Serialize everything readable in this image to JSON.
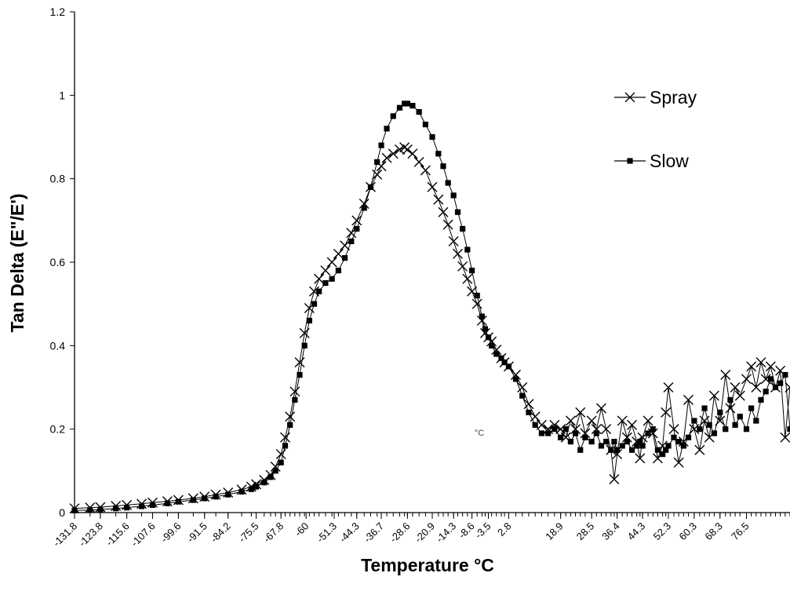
{
  "chart_data": {
    "type": "line",
    "title": "",
    "xlabel": "Temperature °C",
    "ylabel": "Tan Delta (E\"/E')",
    "unit_mark": "°C",
    "ylim": [
      0,
      1.2
    ],
    "xlim": [
      -131.8,
      90
    ],
    "y_ticks": [
      "0",
      "0.2",
      "0.4",
      "0.6",
      "0.8",
      "1",
      "1.2"
    ],
    "x_tick_labels": [
      "-131.8",
      "-123.8",
      "-115.6",
      "-107.6",
      "-99.6",
      "-91.5",
      "-84.2",
      "-75.5",
      "-67.8",
      "-60",
      "-51.3",
      "-44.3",
      "-36.7",
      "-28.6",
      "-20.9",
      "-14.3",
      "-8.6",
      "-3.5",
      "2.8",
      "18.9",
      "28.5",
      "36.4",
      "44.3",
      "52.3",
      "60.3",
      "68.3",
      "76.5"
    ],
    "legend_position": "top-right",
    "grid": false,
    "colors": {
      "line": "#000000",
      "axis": "#000000",
      "background": "#ffffff"
    },
    "series": [
      {
        "name": "Spray",
        "marker": "x",
        "points": [
          [
            -131.8,
            0.01
          ],
          [
            -127,
            0.012
          ],
          [
            -123.8,
            0.013
          ],
          [
            -119,
            0.016
          ],
          [
            -115.6,
            0.018
          ],
          [
            -111,
            0.021
          ],
          [
            -107.6,
            0.024
          ],
          [
            -103,
            0.027
          ],
          [
            -99.6,
            0.03
          ],
          [
            -95,
            0.034
          ],
          [
            -91.5,
            0.038
          ],
          [
            -88,
            0.043
          ],
          [
            -84.2,
            0.048
          ],
          [
            -80,
            0.055
          ],
          [
            -77,
            0.062
          ],
          [
            -75.5,
            0.068
          ],
          [
            -73,
            0.078
          ],
          [
            -71,
            0.09
          ],
          [
            -69.5,
            0.11
          ],
          [
            -67.8,
            0.14
          ],
          [
            -66.5,
            0.18
          ],
          [
            -65,
            0.23
          ],
          [
            -63.5,
            0.29
          ],
          [
            -62,
            0.36
          ],
          [
            -60.5,
            0.43
          ],
          [
            -59,
            0.49
          ],
          [
            -57.5,
            0.53
          ],
          [
            -56,
            0.56
          ],
          [
            -54,
            0.58
          ],
          [
            -52,
            0.6
          ],
          [
            -50,
            0.62
          ],
          [
            -48,
            0.64
          ],
          [
            -46,
            0.67
          ],
          [
            -44.3,
            0.7
          ],
          [
            -42,
            0.74
          ],
          [
            -40,
            0.78
          ],
          [
            -38,
            0.81
          ],
          [
            -36.7,
            0.83
          ],
          [
            -35,
            0.85
          ],
          [
            -33,
            0.86
          ],
          [
            -31,
            0.87
          ],
          [
            -29.5,
            0.875
          ],
          [
            -28.6,
            0.87
          ],
          [
            -27,
            0.86
          ],
          [
            -25,
            0.84
          ],
          [
            -23,
            0.82
          ],
          [
            -20.9,
            0.78
          ],
          [
            -19,
            0.75
          ],
          [
            -17.5,
            0.72
          ],
          [
            -16,
            0.69
          ],
          [
            -14.3,
            0.65
          ],
          [
            -13,
            0.62
          ],
          [
            -11.5,
            0.59
          ],
          [
            -10,
            0.56
          ],
          [
            -8.6,
            0.53
          ],
          [
            -7,
            0.5
          ],
          [
            -5.5,
            0.46
          ],
          [
            -4.5,
            0.43
          ],
          [
            -3.5,
            0.42
          ],
          [
            -2.5,
            0.41
          ],
          [
            -1,
            0.39
          ],
          [
            0.5,
            0.37
          ],
          [
            1.5,
            0.36
          ],
          [
            2.8,
            0.35
          ],
          [
            5,
            0.33
          ],
          [
            7,
            0.3
          ],
          [
            9,
            0.26
          ],
          [
            11,
            0.23
          ],
          [
            13,
            0.21
          ],
          [
            15,
            0.2
          ],
          [
            17,
            0.21
          ],
          [
            18.9,
            0.2
          ],
          [
            20.5,
            0.18
          ],
          [
            22,
            0.22
          ],
          [
            23.5,
            0.2
          ],
          [
            25,
            0.24
          ],
          [
            26.5,
            0.19
          ],
          [
            28.5,
            0.22
          ],
          [
            30,
            0.2
          ],
          [
            31.5,
            0.25
          ],
          [
            33,
            0.2
          ],
          [
            34.5,
            0.15
          ],
          [
            35.5,
            0.08
          ],
          [
            36.4,
            0.14
          ],
          [
            38,
            0.22
          ],
          [
            39.5,
            0.18
          ],
          [
            41,
            0.21
          ],
          [
            42.5,
            0.17
          ],
          [
            43.5,
            0.13
          ],
          [
            44.3,
            0.18
          ],
          [
            46,
            0.22
          ],
          [
            47.5,
            0.19
          ],
          [
            49,
            0.13
          ],
          [
            50.5,
            0.16
          ],
          [
            51.5,
            0.24
          ],
          [
            52.3,
            0.3
          ],
          [
            54,
            0.2
          ],
          [
            55.5,
            0.12
          ],
          [
            57,
            0.17
          ],
          [
            58.5,
            0.27
          ],
          [
            60.3,
            0.2
          ],
          [
            62,
            0.15
          ],
          [
            63.5,
            0.22
          ],
          [
            65,
            0.18
          ],
          [
            66.5,
            0.28
          ],
          [
            68.3,
            0.22
          ],
          [
            70,
            0.33
          ],
          [
            71.5,
            0.25
          ],
          [
            73,
            0.3
          ],
          [
            74.5,
            0.28
          ],
          [
            76.5,
            0.32
          ],
          [
            78,
            0.35
          ],
          [
            79.5,
            0.3
          ],
          [
            81,
            0.36
          ],
          [
            82.5,
            0.32
          ],
          [
            84,
            0.35
          ],
          [
            85.5,
            0.3
          ],
          [
            87,
            0.34
          ],
          [
            88.5,
            0.18
          ],
          [
            90,
            0.3
          ]
        ]
      },
      {
        "name": "Slow",
        "marker": "square",
        "points": [
          [
            -131.8,
            0.005
          ],
          [
            -127,
            0.006
          ],
          [
            -123.8,
            0.007
          ],
          [
            -119,
            0.01
          ],
          [
            -115.6,
            0.012
          ],
          [
            -111,
            0.015
          ],
          [
            -107.6,
            0.018
          ],
          [
            -103,
            0.022
          ],
          [
            -99.6,
            0.026
          ],
          [
            -95,
            0.03
          ],
          [
            -91.5,
            0.034
          ],
          [
            -88,
            0.038
          ],
          [
            -84.2,
            0.043
          ],
          [
            -80,
            0.05
          ],
          [
            -77,
            0.056
          ],
          [
            -75.5,
            0.062
          ],
          [
            -73,
            0.072
          ],
          [
            -71,
            0.085
          ],
          [
            -69.5,
            0.1
          ],
          [
            -67.8,
            0.12
          ],
          [
            -66.5,
            0.16
          ],
          [
            -65,
            0.21
          ],
          [
            -63.5,
            0.27
          ],
          [
            -62,
            0.33
          ],
          [
            -60.5,
            0.4
          ],
          [
            -59,
            0.46
          ],
          [
            -57.5,
            0.5
          ],
          [
            -56,
            0.53
          ],
          [
            -54,
            0.55
          ],
          [
            -52,
            0.56
          ],
          [
            -50,
            0.58
          ],
          [
            -48,
            0.61
          ],
          [
            -46,
            0.65
          ],
          [
            -44.3,
            0.68
          ],
          [
            -42,
            0.73
          ],
          [
            -40,
            0.78
          ],
          [
            -38,
            0.84
          ],
          [
            -36.7,
            0.88
          ],
          [
            -35,
            0.92
          ],
          [
            -33,
            0.95
          ],
          [
            -31,
            0.97
          ],
          [
            -29.5,
            0.98
          ],
          [
            -28.6,
            0.98
          ],
          [
            -27,
            0.975
          ],
          [
            -25,
            0.96
          ],
          [
            -23,
            0.93
          ],
          [
            -20.9,
            0.9
          ],
          [
            -19,
            0.86
          ],
          [
            -17.5,
            0.83
          ],
          [
            -16,
            0.79
          ],
          [
            -14.3,
            0.76
          ],
          [
            -13,
            0.72
          ],
          [
            -11.5,
            0.68
          ],
          [
            -10,
            0.63
          ],
          [
            -8.6,
            0.58
          ],
          [
            -7,
            0.52
          ],
          [
            -5.5,
            0.47
          ],
          [
            -4.5,
            0.44
          ],
          [
            -3.5,
            0.42
          ],
          [
            -2.5,
            0.4
          ],
          [
            -1,
            0.38
          ],
          [
            0.5,
            0.37
          ],
          [
            1.5,
            0.36
          ],
          [
            2.8,
            0.35
          ],
          [
            5,
            0.32
          ],
          [
            7,
            0.28
          ],
          [
            9,
            0.24
          ],
          [
            11,
            0.21
          ],
          [
            13,
            0.19
          ],
          [
            15,
            0.19
          ],
          [
            17,
            0.2
          ],
          [
            18.9,
            0.18
          ],
          [
            20.5,
            0.2
          ],
          [
            22,
            0.17
          ],
          [
            23.5,
            0.19
          ],
          [
            25,
            0.15
          ],
          [
            26.5,
            0.18
          ],
          [
            28.5,
            0.17
          ],
          [
            30,
            0.19
          ],
          [
            31.5,
            0.16
          ],
          [
            33,
            0.17
          ],
          [
            34.5,
            0.15
          ],
          [
            35.5,
            0.17
          ],
          [
            36.4,
            0.15
          ],
          [
            38,
            0.16
          ],
          [
            39.5,
            0.17
          ],
          [
            41,
            0.15
          ],
          [
            42.5,
            0.16
          ],
          [
            43.5,
            0.17
          ],
          [
            44.3,
            0.16
          ],
          [
            46,
            0.19
          ],
          [
            47.5,
            0.2
          ],
          [
            49,
            0.15
          ],
          [
            50.5,
            0.14
          ],
          [
            51.5,
            0.15
          ],
          [
            52.3,
            0.16
          ],
          [
            54,
            0.18
          ],
          [
            55.5,
            0.17
          ],
          [
            57,
            0.16
          ],
          [
            58.5,
            0.18
          ],
          [
            60.3,
            0.22
          ],
          [
            62,
            0.2
          ],
          [
            63.5,
            0.25
          ],
          [
            65,
            0.21
          ],
          [
            66.5,
            0.19
          ],
          [
            68.3,
            0.24
          ],
          [
            70,
            0.2
          ],
          [
            71.5,
            0.27
          ],
          [
            73,
            0.21
          ],
          [
            74.5,
            0.23
          ],
          [
            76.5,
            0.2
          ],
          [
            78,
            0.25
          ],
          [
            79.5,
            0.22
          ],
          [
            81,
            0.27
          ],
          [
            82.5,
            0.29
          ],
          [
            84,
            0.32
          ],
          [
            85.5,
            0.3
          ],
          [
            87,
            0.31
          ],
          [
            88.5,
            0.33
          ],
          [
            90,
            0.2
          ]
        ]
      }
    ]
  }
}
